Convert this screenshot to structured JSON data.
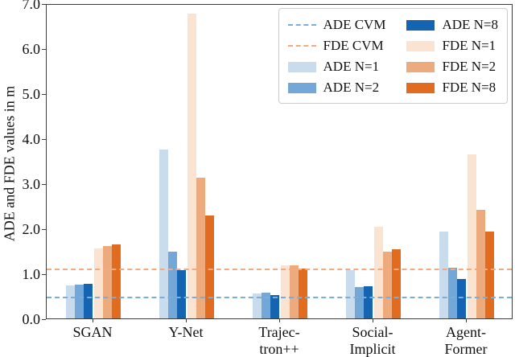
{
  "chart_data": {
    "type": "bar",
    "title": "",
    "ylabel": "ADE and FDE values in m",
    "xlabel": "",
    "ylim": [
      0.0,
      7.0
    ],
    "ytick_labels": [
      "0.0",
      "1.0",
      "2.0",
      "3.0",
      "4.0",
      "5.0",
      "6.0",
      "7.0"
    ],
    "grid": false,
    "categories": [
      "SGAN",
      "Y-Net",
      "Trajectron++",
      "Social-Implicit",
      "AgentFormer"
    ],
    "category_label_lines": [
      [
        "SGAN"
      ],
      [
        "Y-Net"
      ],
      [
        "Trajec-",
        "tron++"
      ],
      [
        "Social-",
        "Implicit"
      ],
      [
        "Agent-",
        "Former"
      ]
    ],
    "series": [
      {
        "name": "ADE N=1",
        "color": "#c9dcee",
        "values": [
          0.73,
          3.75,
          0.55,
          1.08,
          1.93
        ]
      },
      {
        "name": "ADE N=2",
        "color": "#73a7d7",
        "values": [
          0.75,
          1.48,
          0.57,
          0.7,
          1.13
        ]
      },
      {
        "name": "ADE N=8",
        "color": "#1564b2",
        "values": [
          0.76,
          1.08,
          0.52,
          0.72,
          0.87
        ]
      },
      {
        "name": "FDE N=1",
        "color": "#fbe3d2",
        "values": [
          1.56,
          6.76,
          1.18,
          2.03,
          3.64
        ]
      },
      {
        "name": "FDE N=2",
        "color": "#edaa7d",
        "values": [
          1.6,
          3.12,
          1.17,
          1.49,
          2.41
        ]
      },
      {
        "name": "FDE N=8",
        "color": "#e16c1f",
        "values": [
          1.64,
          2.28,
          1.11,
          1.53,
          1.92
        ]
      }
    ],
    "reference_lines": [
      {
        "name": "ADE CVM",
        "value": 0.5,
        "color": "#79aedb",
        "style": "dashed"
      },
      {
        "name": "FDE CVM",
        "value": 1.13,
        "color": "#f4a97e",
        "style": "dashed"
      }
    ],
    "legend": {
      "position": "upper right",
      "columns": 2,
      "entries": [
        {
          "label": "ADE CVM",
          "swatch": "dashed-line",
          "color": "#79aedb"
        },
        {
          "label": "FDE CVM",
          "swatch": "dashed-line",
          "color": "#f4a97e"
        },
        {
          "label": "ADE N=1",
          "swatch": "patch",
          "color": "#c9dcee"
        },
        {
          "label": "ADE N=2",
          "swatch": "patch",
          "color": "#73a7d7"
        },
        {
          "label": "ADE N=8",
          "swatch": "patch",
          "color": "#1564b2"
        },
        {
          "label": "FDE N=1",
          "swatch": "patch",
          "color": "#fbe3d2"
        },
        {
          "label": "FDE N=2",
          "swatch": "patch",
          "color": "#edaa7d"
        },
        {
          "label": "FDE N=8",
          "swatch": "patch",
          "color": "#e16c1f"
        }
      ]
    }
  }
}
